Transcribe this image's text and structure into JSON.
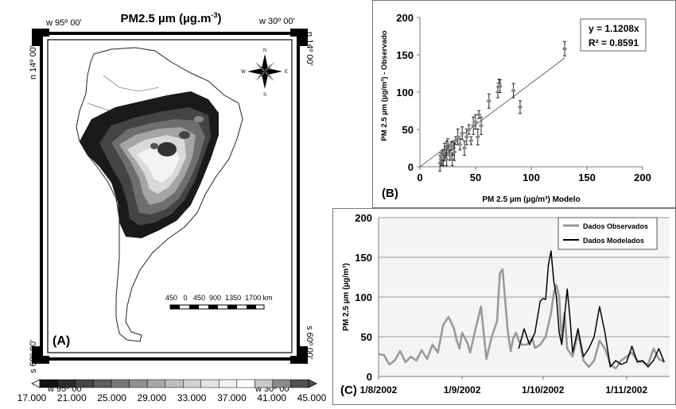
{
  "map": {
    "title": "PM2.5 µm (µg.m",
    "title_sup": "-3",
    "title_close": ")",
    "coord_top_left_lon": "w 95º 00'",
    "coord_top_left_lat": "n 14º 00'",
    "coord_top_right_lon": "w 30º 00'",
    "coord_top_right_lat": "n 14º 00'",
    "coord_bottom_left_lon": "w 95º 00'",
    "coord_bottom_left_lat": "s 60º 00'",
    "coord_bottom_right_lon": "w 30º 00'",
    "coord_bottom_right_lat": "s 60º 00'",
    "panel_label": "(A)",
    "compass": {
      "n": "N",
      "s": "S",
      "e": "E",
      "w": "W"
    },
    "scale_label": "450   0   450  900  1350  1700 km",
    "colorbar": {
      "labels": [
        "17.000",
        "21.000",
        "25.000",
        "29.000",
        "33.000",
        "37.000",
        "41.000",
        "45.000"
      ],
      "colors": [
        "#111111",
        "#2b2b2b",
        "#444444",
        "#5e5e5e",
        "#777777",
        "#8f8f8f",
        "#a6a6a6",
        "#bcbcbc",
        "#d0d0d0",
        "#e2e2e2",
        "#f2f2f2",
        "#ffffff",
        "#c8c8c8",
        "#8a8a8a",
        "#505050"
      ]
    }
  },
  "chart_data": [
    {
      "type": "scatter",
      "panel_label": "(B)",
      "xlabel": "PM 2.5 µm (µg/m³)  Modelo",
      "ylabel": "PM 2.5 µm (µg/m³) - Observado",
      "xlim": [
        0,
        200
      ],
      "ylim": [
        0,
        200
      ],
      "xticks": [
        "0",
        "50",
        "100",
        "150",
        "200"
      ],
      "yticks": [
        "0",
        "50",
        "100",
        "150",
        "200"
      ],
      "grid": false,
      "equation": "y = 1.1208x",
      "r2": "R² = 0.8591",
      "trendline": {
        "slope": 1.1208,
        "x_range": [
          0,
          130
        ]
      },
      "points": [
        {
          "x": 18,
          "y": 5
        },
        {
          "x": 19,
          "y": 10
        },
        {
          "x": 20,
          "y": 8
        },
        {
          "x": 20,
          "y": 15
        },
        {
          "x": 21,
          "y": 12
        },
        {
          "x": 22,
          "y": 20
        },
        {
          "x": 23,
          "y": 18
        },
        {
          "x": 24,
          "y": 25
        },
        {
          "x": 24,
          "y": 10
        },
        {
          "x": 25,
          "y": 30
        },
        {
          "x": 26,
          "y": 22
        },
        {
          "x": 27,
          "y": 15
        },
        {
          "x": 28,
          "y": 28
        },
        {
          "x": 29,
          "y": 10
        },
        {
          "x": 30,
          "y": 25
        },
        {
          "x": 31,
          "y": 20
        },
        {
          "x": 32,
          "y": 35
        },
        {
          "x": 34,
          "y": 40
        },
        {
          "x": 36,
          "y": 30
        },
        {
          "x": 38,
          "y": 45
        },
        {
          "x": 40,
          "y": 25
        },
        {
          "x": 42,
          "y": 40
        },
        {
          "x": 44,
          "y": 50
        },
        {
          "x": 46,
          "y": 35
        },
        {
          "x": 48,
          "y": 55
        },
        {
          "x": 50,
          "y": 60
        },
        {
          "x": 52,
          "y": 40
        },
        {
          "x": 53,
          "y": 70
        },
        {
          "x": 55,
          "y": 55
        },
        {
          "x": 62,
          "y": 88
        },
        {
          "x": 70,
          "y": 100
        },
        {
          "x": 71,
          "y": 112
        },
        {
          "x": 72,
          "y": 108
        },
        {
          "x": 84,
          "y": 102
        },
        {
          "x": 90,
          "y": 80
        },
        {
          "x": 130,
          "y": 158
        }
      ]
    },
    {
      "type": "line",
      "panel_label": "(C)",
      "ylabel": "PM 2.5 µm (µg/m³)",
      "xlabel": "",
      "ylim": [
        0,
        200
      ],
      "yticks": [
        "0",
        "50",
        "100",
        "150",
        "200"
      ],
      "xticks": [
        {
          "label": "1/8/2002",
          "day": 0
        },
        {
          "label": "1/9/2002",
          "day": 31
        },
        {
          "label": "1/10/2002",
          "day": 61
        },
        {
          "label": "1/11/2002",
          "day": 92
        }
      ],
      "x_unit": "days from 1/8/2002",
      "grid": true,
      "legend_position": "top-right",
      "series": [
        {
          "name": "Dados Observados",
          "color": "#9a9a9a",
          "x": [
            0,
            2,
            4,
            6,
            8,
            10,
            12,
            14,
            16,
            18,
            20,
            22,
            24,
            26,
            28,
            29,
            30,
            31,
            33,
            34,
            36,
            38,
            40,
            42,
            44,
            45,
            46,
            48,
            49,
            50,
            51,
            52,
            53,
            55,
            57,
            58,
            60,
            62,
            64,
            65,
            66,
            67,
            68,
            69,
            70,
            72,
            74,
            76,
            78,
            80,
            82,
            84,
            86,
            88,
            90,
            92,
            94,
            96,
            98,
            100,
            102,
            104,
            106
          ],
          "y": [
            28,
            27,
            15,
            20,
            32,
            18,
            25,
            20,
            33,
            22,
            40,
            30,
            65,
            75,
            60,
            45,
            35,
            55,
            42,
            30,
            60,
            88,
            22,
            50,
            70,
            130,
            135,
            55,
            32,
            48,
            55,
            45,
            40,
            40,
            48,
            36,
            40,
            50,
            80,
            105,
            115,
            100,
            45,
            80,
            35,
            25,
            55,
            20,
            12,
            20,
            45,
            35,
            15,
            10,
            20,
            25,
            30,
            20,
            18,
            15,
            35,
            22,
            18
          ]
        },
        {
          "name": "Dados Modelados",
          "color": "#000000",
          "x": [
            52,
            54,
            56,
            58,
            60,
            61,
            62,
            63,
            64,
            65,
            66,
            67,
            68,
            70,
            71,
            72,
            74,
            76,
            78,
            80,
            82,
            84,
            86,
            88,
            90,
            92,
            94,
            96,
            98,
            100,
            102,
            104,
            106
          ],
          "y": [
            35,
            60,
            40,
            55,
            95,
            98,
            97,
            140,
            158,
            120,
            100,
            55,
            40,
            110,
            75,
            30,
            60,
            25,
            35,
            50,
            88,
            55,
            12,
            20,
            15,
            18,
            38,
            18,
            20,
            12,
            20,
            35,
            18
          ]
        }
      ]
    }
  ]
}
